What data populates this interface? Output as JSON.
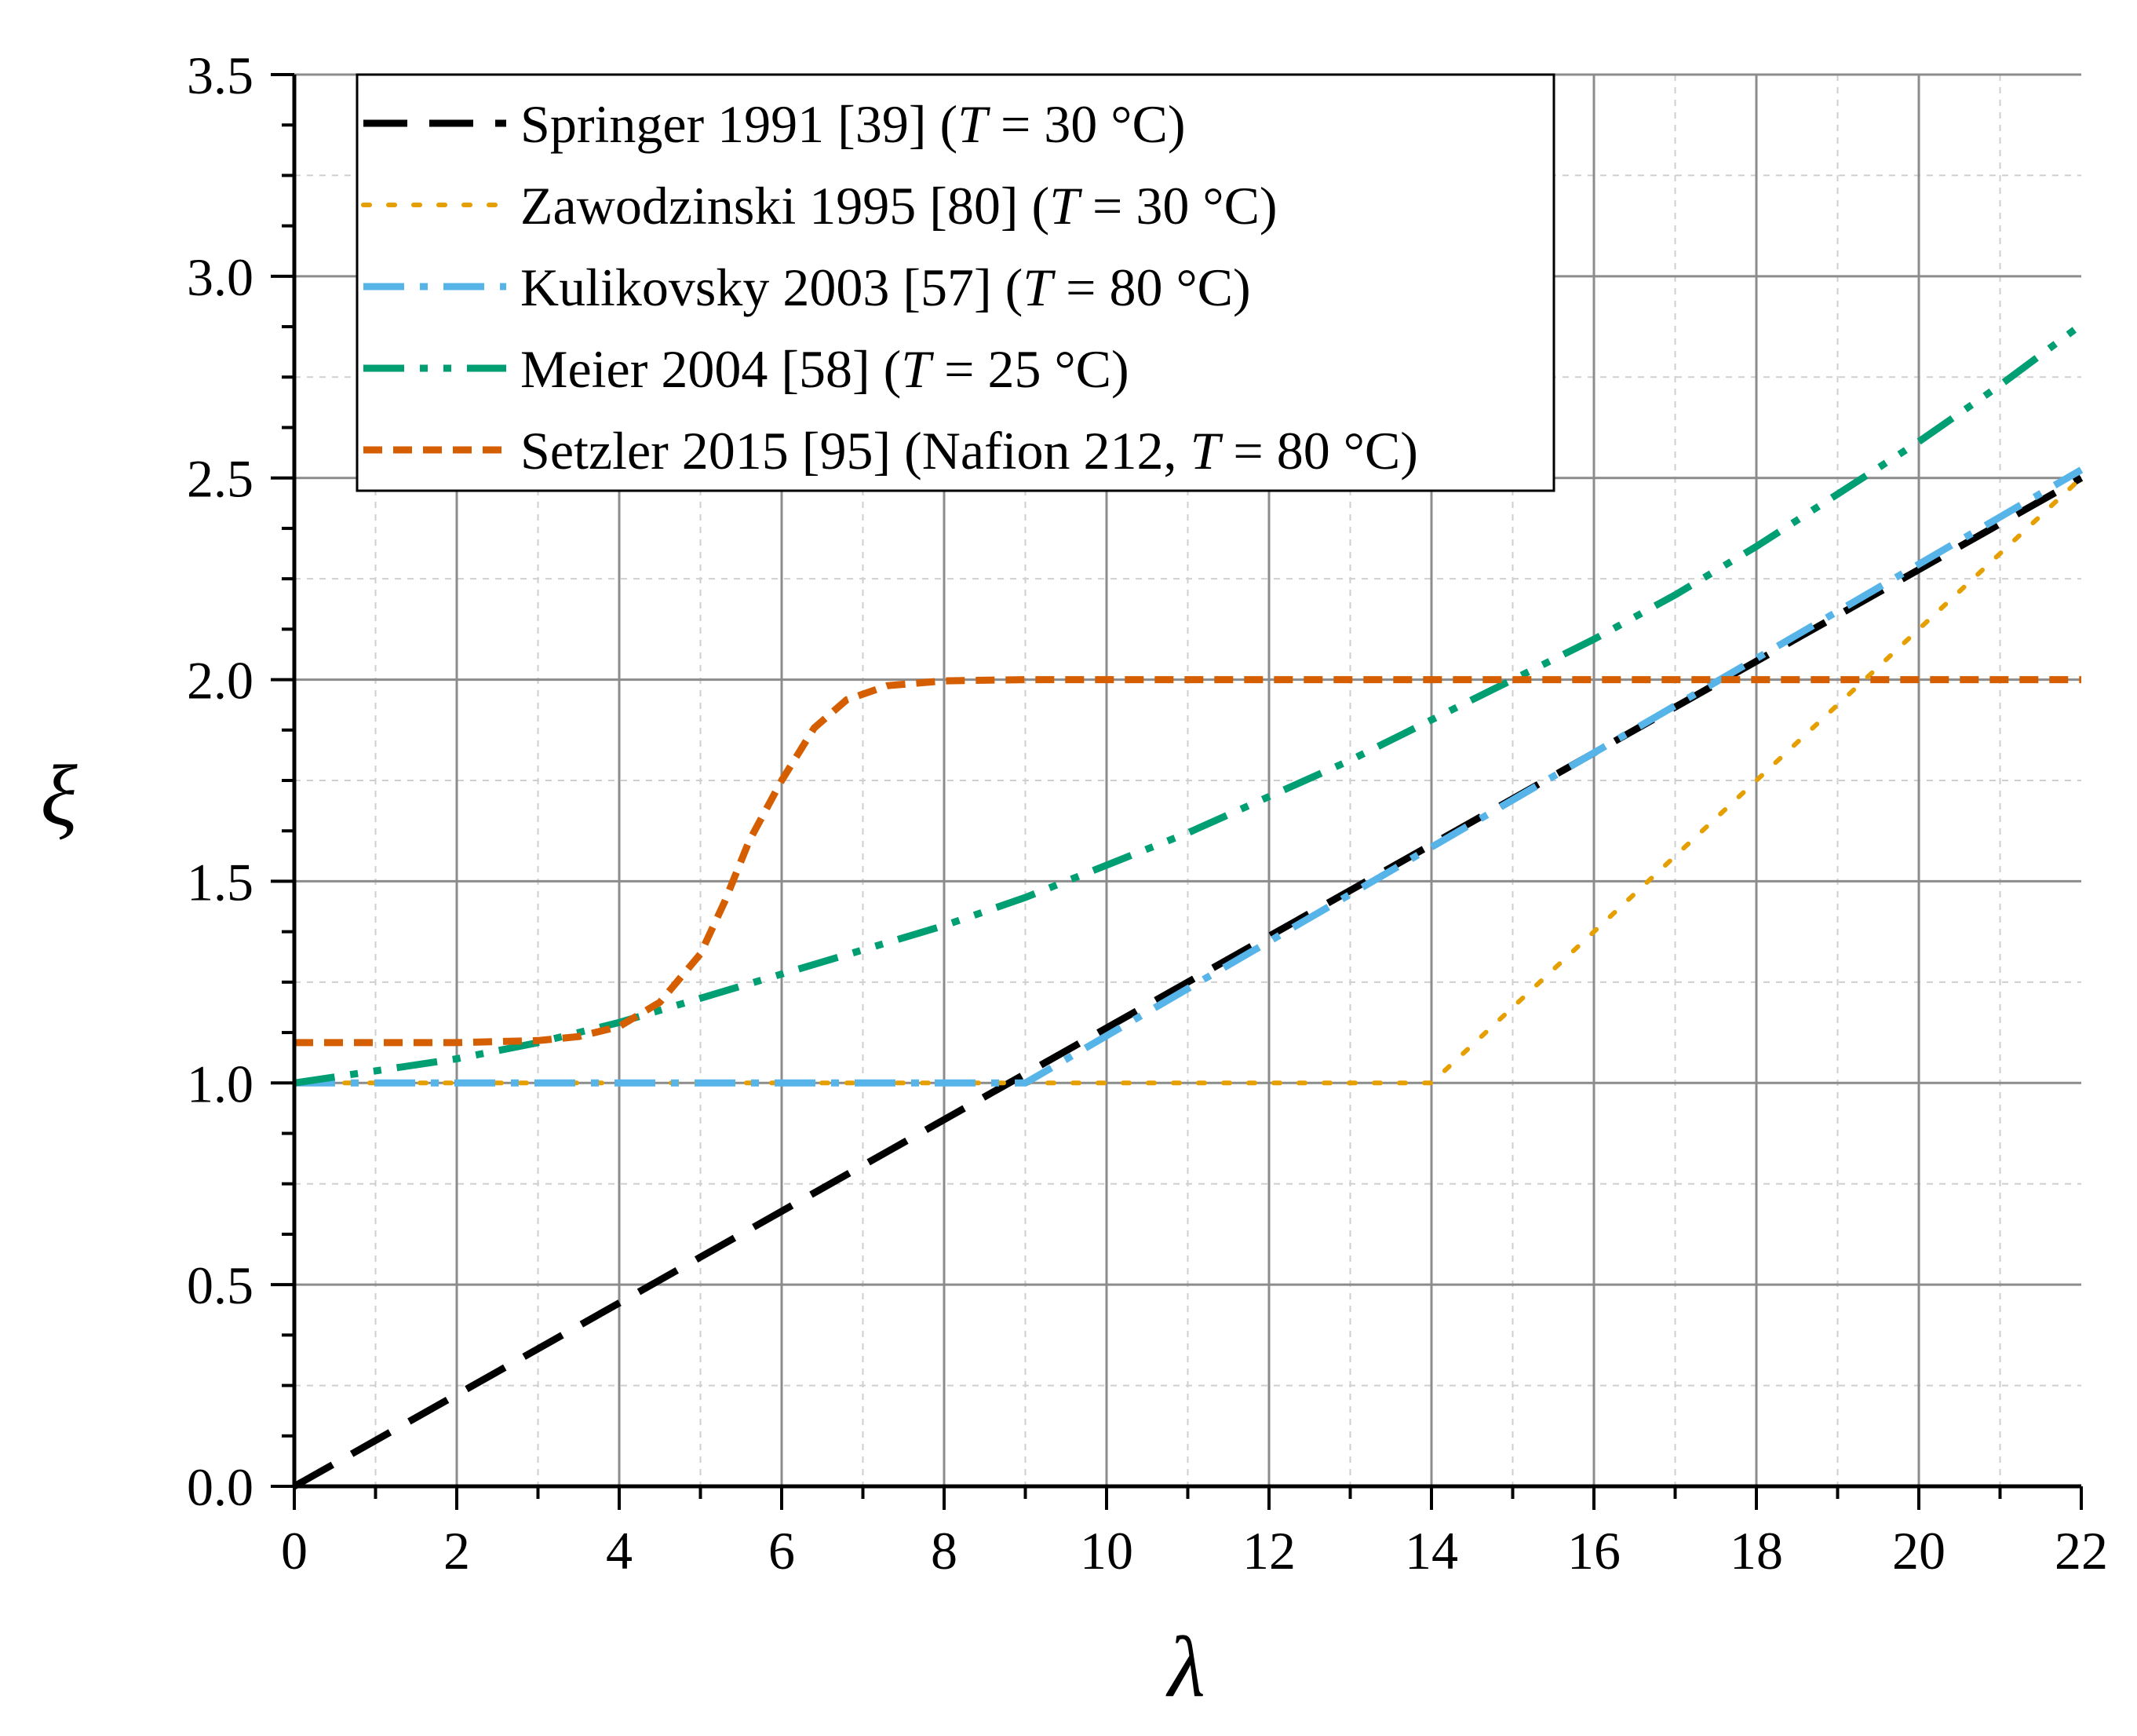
{
  "chart_data": {
    "type": "line",
    "title": "",
    "xlabel": "λ",
    "ylabel": "ξ",
    "xlim": [
      0,
      22
    ],
    "ylim": [
      0,
      3.5
    ],
    "xticks": [
      "0",
      "2",
      "4",
      "6",
      "8",
      "10",
      "12",
      "14",
      "16",
      "18",
      "20",
      "22"
    ],
    "yticks": [
      "0.0",
      "0.5",
      "1.0",
      "1.5",
      "2.0",
      "2.5",
      "3.0",
      "3.5"
    ],
    "grid": true,
    "legend_position": "top-left",
    "series": [
      {
        "name": "Springer 1991 [39] (T = 30 °C)",
        "legend_parts": [
          "Springer 1991 [39] (",
          "T",
          " = 30 °C)"
        ],
        "color": "#000000",
        "dash": "long-dash",
        "points": [
          [
            0,
            0
          ],
          [
            22,
            2.5
          ]
        ]
      },
      {
        "name": "Zawodzinski 1995 [80] (T = 30 °C)",
        "legend_parts": [
          "Zawodzinski 1995 [80] (",
          "T",
          " = 30 °C)"
        ],
        "color": "#E69F00",
        "dash": "dot",
        "points": [
          [
            0,
            1.0
          ],
          [
            14,
            1.0
          ],
          [
            22,
            2.5
          ]
        ]
      },
      {
        "name": "Kulikovsky 2003 [57] (T = 80 °C)",
        "legend_parts": [
          "Kulikovsky 2003 [57] (",
          "T",
          " = 80 °C)"
        ],
        "color": "#56B4E9",
        "dash": "dash-dot",
        "points": [
          [
            0,
            1.0
          ],
          [
            9,
            1.0
          ],
          [
            22,
            2.52
          ]
        ]
      },
      {
        "name": "Meier 2004 [58] (T = 25 °C)",
        "legend_parts": [
          "Meier 2004 [58] (",
          "T",
          " = 25 °C)"
        ],
        "color": "#009E73",
        "dash": "dash-dot-dot",
        "points": [
          [
            0,
            1.0
          ],
          [
            1,
            1.03
          ],
          [
            2,
            1.06
          ],
          [
            3,
            1.1
          ],
          [
            4,
            1.15
          ],
          [
            5,
            1.21
          ],
          [
            6,
            1.27
          ],
          [
            7,
            1.33
          ],
          [
            8,
            1.39
          ],
          [
            9,
            1.46
          ],
          [
            10,
            1.54
          ],
          [
            11,
            1.62
          ],
          [
            12,
            1.71
          ],
          [
            13,
            1.8
          ],
          [
            14,
            1.9
          ],
          [
            15,
            2.0
          ],
          [
            16,
            2.1
          ],
          [
            17,
            2.21
          ],
          [
            18,
            2.33
          ],
          [
            19,
            2.46
          ],
          [
            20,
            2.59
          ],
          [
            21,
            2.73
          ],
          [
            22,
            2.88
          ]
        ]
      },
      {
        "name": "Setzler 2015 [95] (Nafion 212, T = 80 °C)",
        "legend_parts": [
          "Setzler 2015 [95] (Nafion 212, ",
          "T",
          " = 80 °C)"
        ],
        "color": "#D55E00",
        "dash": "short-dash",
        "points": [
          [
            0,
            1.1
          ],
          [
            2,
            1.1
          ],
          [
            3,
            1.105
          ],
          [
            3.5,
            1.115
          ],
          [
            4,
            1.14
          ],
          [
            4.5,
            1.2
          ],
          [
            5,
            1.32
          ],
          [
            5.3,
            1.45
          ],
          [
            5.6,
            1.6
          ],
          [
            6,
            1.75
          ],
          [
            6.4,
            1.88
          ],
          [
            6.8,
            1.95
          ],
          [
            7.3,
            1.985
          ],
          [
            8,
            1.997
          ],
          [
            9,
            2.0
          ],
          [
            22,
            2.0
          ]
        ]
      }
    ]
  }
}
